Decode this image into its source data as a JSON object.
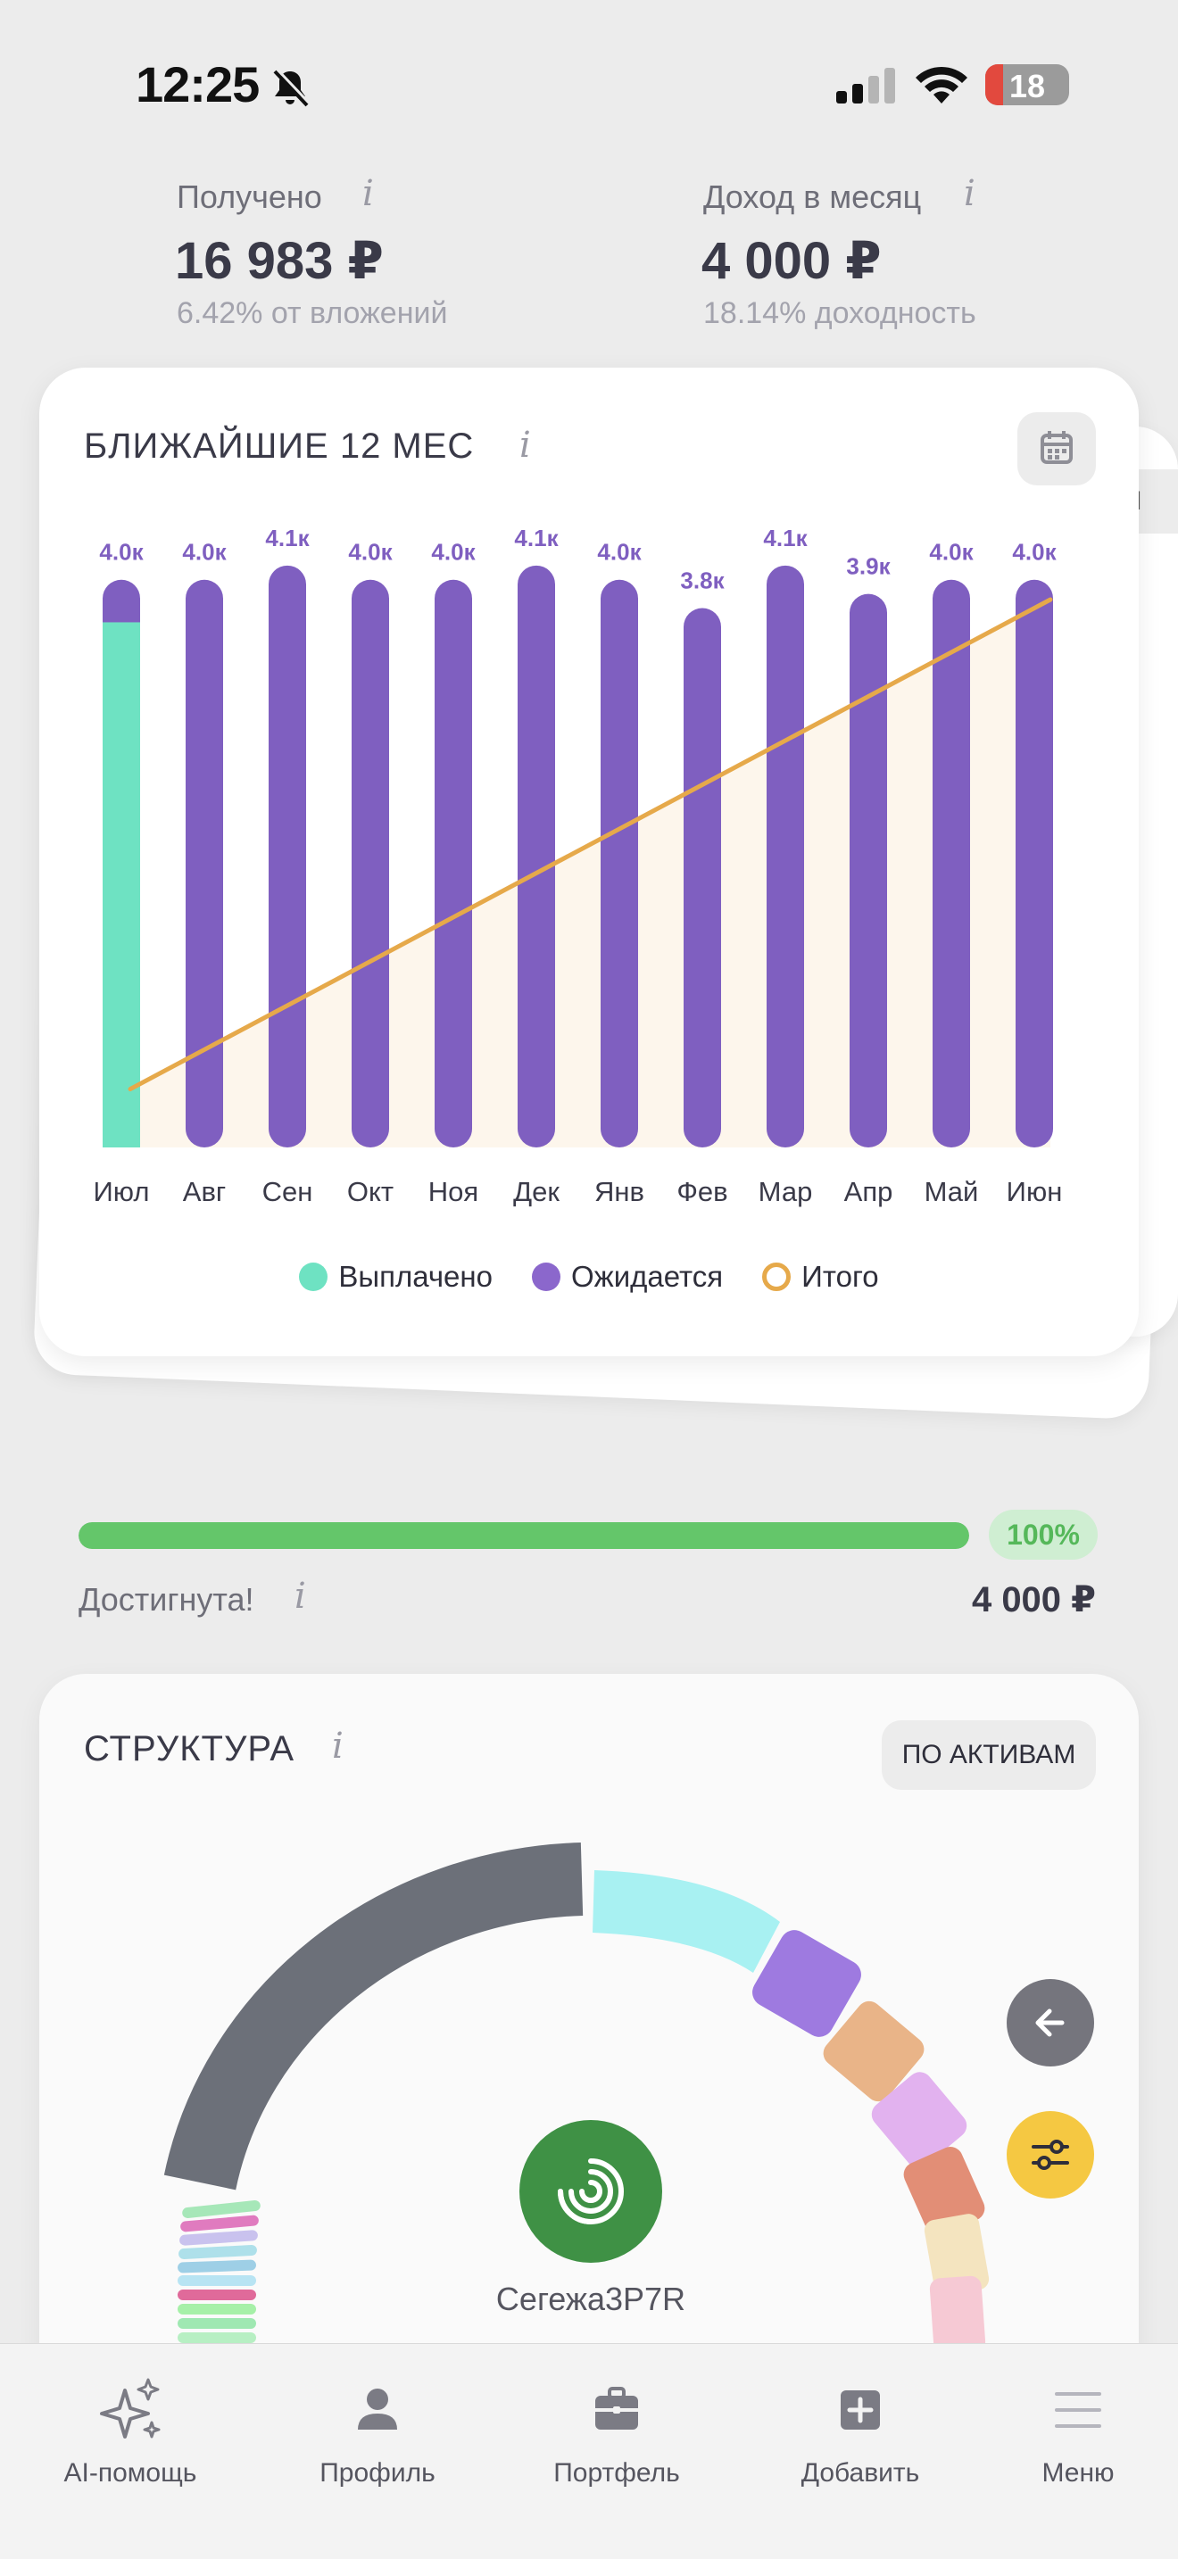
{
  "status_bar": {
    "time": "12:25",
    "battery": "18"
  },
  "stats": {
    "received": {
      "label": "Получено",
      "value": "16 983 ₽",
      "sub": "6.42% от вложений"
    },
    "monthly": {
      "label": "Доход в месяц",
      "value": "4 000 ₽",
      "sub": "18.14% доходность"
    },
    "info_glyph": "i"
  },
  "upcoming": {
    "title": "БЛИЖАЙШИЕ 12 МЕС",
    "back_card_label": "И",
    "legend": {
      "paid": "Выплачено",
      "expected": "Ожидается",
      "total": "Итого"
    },
    "colors": {
      "paid": "#6ee2c2",
      "expected": "#7f5fc0",
      "total": "#e6a94a"
    }
  },
  "chart_data": {
    "type": "bar",
    "categories": [
      "Июл",
      "Авг",
      "Сен",
      "Окт",
      "Ноя",
      "Дек",
      "Янв",
      "Фев",
      "Мар",
      "Апр",
      "Май",
      "Июн"
    ],
    "labels": [
      "4.0к",
      "4.0к",
      "4.1к",
      "4.0к",
      "4.0к",
      "4.1к",
      "4.0к",
      "3.8к",
      "4.1к",
      "3.9к",
      "4.0к",
      "4.0к"
    ],
    "series": [
      {
        "name": "Выплачено",
        "values": [
          3700,
          0,
          0,
          0,
          0,
          0,
          0,
          0,
          0,
          0,
          0,
          0
        ]
      },
      {
        "name": "Ожидается",
        "values": [
          300,
          4000,
          4100,
          4000,
          4000,
          4100,
          4000,
          3800,
          4100,
          3900,
          4000,
          4000
        ]
      }
    ],
    "cumulative_line": {
      "name": "Итого",
      "start": 0.1,
      "end": 1.0
    },
    "ylim": [
      0,
      4300
    ]
  },
  "goal": {
    "percent": 100,
    "percent_label": "100%",
    "label": "Достигнута!",
    "value": "4 000 ₽"
  },
  "structure": {
    "title": "СТРУКТУРА",
    "mode_button": "ПО АКТИВАМ",
    "center_label": "Сегежа3P7R"
  },
  "nav": [
    {
      "label": "AI-помощь",
      "icon": "sparkles-icon"
    },
    {
      "label": "Профиль",
      "icon": "person-icon"
    },
    {
      "label": "Портфель",
      "icon": "briefcase-icon"
    },
    {
      "label": "Добавить",
      "icon": "plus-square-icon"
    },
    {
      "label": "Меню",
      "icon": "menu-icon"
    }
  ]
}
